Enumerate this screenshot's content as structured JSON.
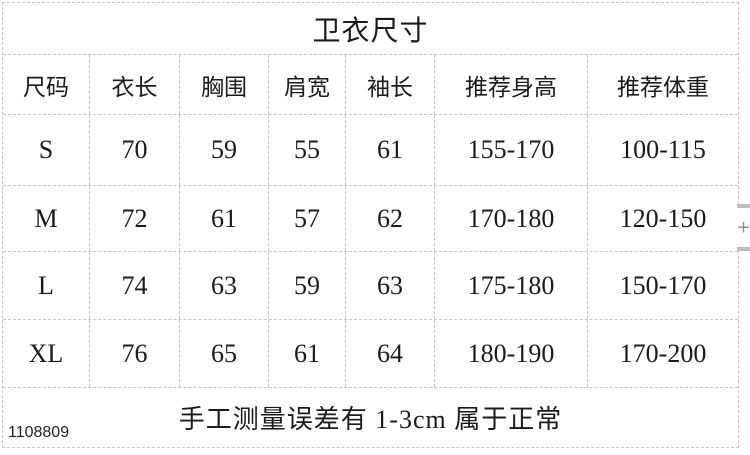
{
  "chart_data": {
    "type": "table",
    "title": "卫衣尺寸",
    "columns": [
      "尺码",
      "衣长",
      "胸围",
      "肩宽",
      "袖长",
      "推荐身高",
      "推荐体重"
    ],
    "rows": [
      [
        "S",
        "70",
        "59",
        "55",
        "61",
        "155-170",
        "100-115"
      ],
      [
        "M",
        "72",
        "61",
        "57",
        "62",
        "170-180",
        "120-150"
      ],
      [
        "L",
        "74",
        "63",
        "59",
        "63",
        "175-180",
        "150-170"
      ],
      [
        "XL",
        "76",
        "65",
        "61",
        "64",
        "180-190",
        "170-200"
      ]
    ],
    "footer_note": "手工测量误差有 1-3cm 属于正常",
    "layout": "grid with dashed light-gray borders, title row and footer row span all columns"
  },
  "watermark": "1108809",
  "side_widget": {
    "plus_label": "+"
  },
  "colors": {
    "background": "#ffffff",
    "border": "#c6c6c6",
    "text": "#1b1b1b",
    "widget_bar": "#bdbdbd"
  }
}
